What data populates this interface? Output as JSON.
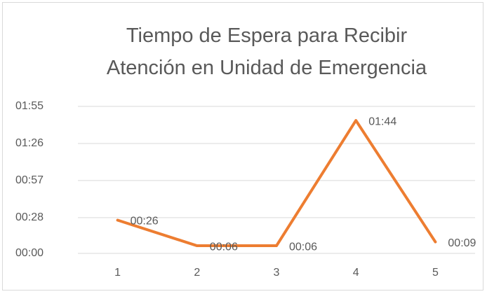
{
  "chart_data": {
    "type": "line",
    "title": "Tiempo de Espera para Recibir Atención en Unidad de Emergencia",
    "categories": [
      "1",
      "2",
      "3",
      "4",
      "5"
    ],
    "series": [
      {
        "name": "Tiempo de Espera",
        "color": "#ed7d31",
        "values": [
          26,
          6,
          6,
          104,
          9
        ],
        "value_labels": [
          "00:26",
          "00:06",
          "00:06",
          "01:44",
          "00:09"
        ]
      }
    ],
    "ylim": [
      0,
      115
    ],
    "yticks": [
      {
        "value": 0,
        "label": "00:00"
      },
      {
        "value": 28,
        "label": "00:28"
      },
      {
        "value": 57,
        "label": "00:57"
      },
      {
        "value": 86,
        "label": "01:26"
      },
      {
        "value": 115,
        "label": "01:55"
      }
    ],
    "grid": true
  }
}
